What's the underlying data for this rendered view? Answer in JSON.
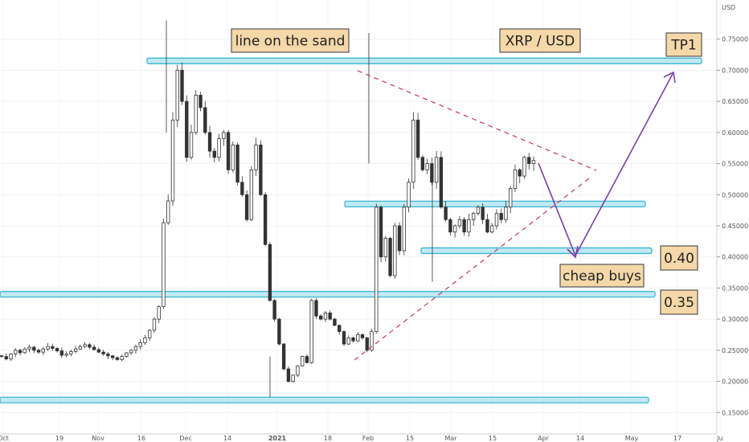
{
  "chart_data": {
    "type": "candlestick",
    "title": "XRP / USD",
    "y_unit_label": "USD",
    "ylim": [
      0.14,
      0.8
    ],
    "y_ticks": [
      "0.15000",
      "0.20000",
      "0.25000",
      "0.30000",
      "0.35000",
      "0.40000",
      "0.45000",
      "0.50000",
      "0.55000",
      "0.60000",
      "0.65000",
      "0.70000",
      "0.75000"
    ],
    "x_ticks": [
      "Oct",
      "19",
      "Nov",
      "16",
      "Dec",
      "14",
      "2021",
      "18",
      "Feb",
      "15",
      "Mar",
      "15",
      "Apr",
      "14",
      "May",
      "17",
      "Ju"
    ],
    "candle_closes": [
      0.24,
      0.236,
      0.244,
      0.25,
      0.246,
      0.252,
      0.255,
      0.25,
      0.247,
      0.252,
      0.256,
      0.253,
      0.249,
      0.242,
      0.244,
      0.248,
      0.252,
      0.256,
      0.259,
      0.255,
      0.251,
      0.247,
      0.244,
      0.241,
      0.238,
      0.235,
      0.24,
      0.246,
      0.25,
      0.256,
      0.262,
      0.27,
      0.282,
      0.3,
      0.32,
      0.455,
      0.49,
      0.62,
      0.7,
      0.65,
      0.56,
      0.6,
      0.66,
      0.64,
      0.6,
      0.57,
      0.56,
      0.59,
      0.6,
      0.54,
      0.58,
      0.52,
      0.5,
      0.46,
      0.54,
      0.58,
      0.5,
      0.42,
      0.33,
      0.3,
      0.26,
      0.22,
      0.2,
      0.21,
      0.225,
      0.24,
      0.23,
      0.33,
      0.305,
      0.3,
      0.31,
      0.3,
      0.29,
      0.28,
      0.26,
      0.27,
      0.265,
      0.275,
      0.27,
      0.25,
      0.28,
      0.48,
      0.4,
      0.43,
      0.37,
      0.45,
      0.41,
      0.48,
      0.52,
      0.62,
      0.56,
      0.54,
      0.55,
      0.52,
      0.56,
      0.48,
      0.46,
      0.44,
      0.45,
      0.46,
      0.44,
      0.46,
      0.47,
      0.48,
      0.46,
      0.44,
      0.45,
      0.47,
      0.46,
      0.48,
      0.51,
      0.54,
      0.53,
      0.56,
      0.55,
      0.555
    ],
    "levels": [
      0.715,
      0.485,
      0.41,
      0.34,
      0.17
    ],
    "annotations": {
      "line_on_the_sand": "line on the sand",
      "title_box": "XRP / USD",
      "target": "TP1",
      "level_040": "0.40",
      "level_035": "0.35",
      "cheap_buys": "cheap buys"
    }
  }
}
